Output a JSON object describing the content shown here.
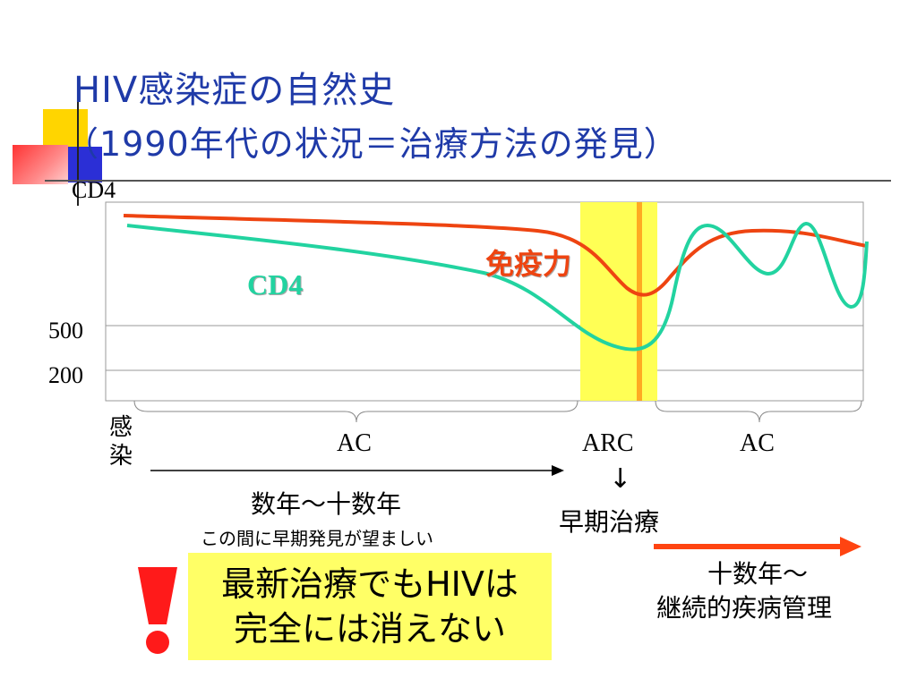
{
  "title": {
    "line1": "HIV感染症の自然史",
    "line2": "（1990年代の状況＝治療方法の発見）"
  },
  "chart": {
    "ylabel": "CD4",
    "yticks": [
      "500",
      "200"
    ],
    "labels": {
      "cd4": "CD4",
      "immunity": "免疫力"
    },
    "colors": {
      "cd4": "#22d3a0",
      "immunity": "#ee4411",
      "highlight": "#ffff55",
      "treatment_line": "#ffaa22"
    }
  },
  "timeline": {
    "infection": "感染",
    "phases": [
      "AC",
      "ARC",
      "AC"
    ],
    "period_main": "数年〜十数年",
    "period_sub": "この間に早期発見が望ましい",
    "arrow_glyph": "↓",
    "early_treatment": "早期治療",
    "longterm_line1": "十数年〜",
    "longterm_line2": "継続的疾病管理"
  },
  "warning": {
    "line1": "最新治療でもHIVは",
    "line2": "完全には消えない",
    "icon": "exclamation-icon"
  }
}
